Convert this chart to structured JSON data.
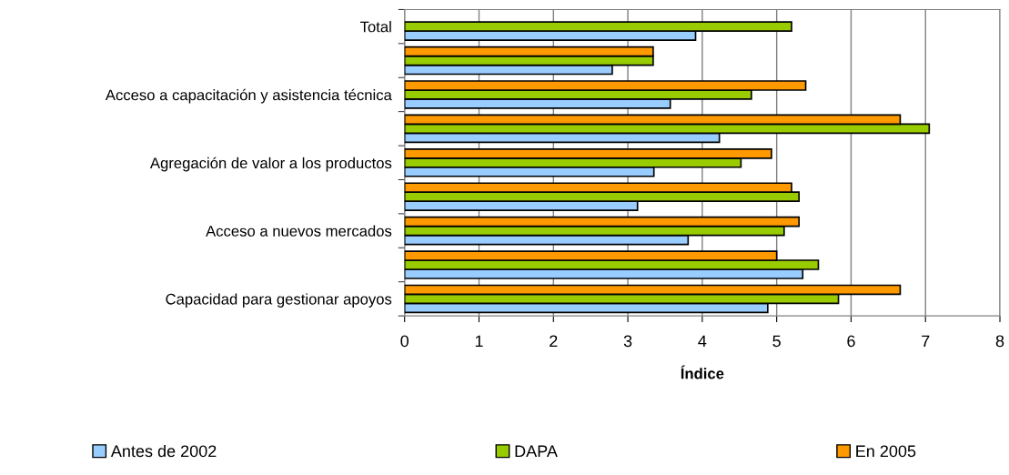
{
  "chart_data": {
    "type": "bar",
    "orientation": "horizontal",
    "xlabel": "Índice",
    "categories": [
      "Total",
      null,
      "Acceso a capacitación y asistencia técnica",
      null,
      "Agregación de valor a los productos",
      null,
      "Acceso a nuevos mercados",
      null,
      "Capacidad para gestionar apoyos"
    ],
    "series": [
      {
        "name": "Antes de 2002",
        "color": "#99ccff",
        "values": [
          3.91,
          2.79,
          3.57,
          4.23,
          3.35,
          3.13,
          3.81,
          5.35,
          4.88
        ]
      },
      {
        "name": "DAPA",
        "color": "#99cc00",
        "values": [
          5.2,
          3.34,
          4.66,
          7.05,
          4.52,
          5.3,
          5.1,
          5.56,
          5.83
        ]
      },
      {
        "name": "En 2005",
        "color": "#ff9900",
        "values": [
          null,
          3.34,
          5.39,
          6.66,
          4.93,
          5.2,
          5.3,
          5.0,
          6.66
        ]
      }
    ],
    "xlim": [
      0,
      8
    ],
    "xticks": [
      0,
      1,
      2,
      3,
      4,
      5,
      6,
      7,
      8
    ],
    "grid": "x",
    "legend": "bottom"
  }
}
